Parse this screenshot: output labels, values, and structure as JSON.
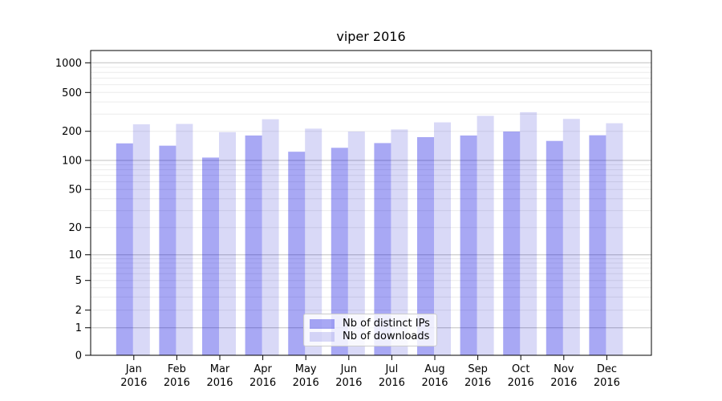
{
  "chart_data": {
    "type": "bar",
    "title": "viper 2016",
    "categories": [
      "Jan 2016",
      "Feb 2016",
      "Mar 2016",
      "Apr 2016",
      "May 2016",
      "Jun 2016",
      "Jul 2016",
      "Aug 2016",
      "Sep 2016",
      "Oct 2016",
      "Nov 2016",
      "Dec 2016"
    ],
    "series": [
      {
        "name": "Nb of distinct IPs",
        "color": "rgba(0,0,223,0.34)",
        "values": [
          150,
          142,
          107,
          181,
          123,
          135,
          151,
          174,
          181,
          199,
          159,
          182
        ]
      },
      {
        "name": "Nb of downloads",
        "color": "rgba(0,0,201,0.15)",
        "values": [
          236,
          238,
          196,
          266,
          213,
          199,
          209,
          247,
          288,
          314,
          268,
          242
        ]
      }
    ],
    "y_ticks": [
      0,
      1,
      2,
      5,
      10,
      20,
      50,
      100,
      200,
      500,
      1000
    ],
    "y_scale": "symlog",
    "ylim": [
      0,
      1400
    ],
    "xlabel": "",
    "ylabel": "",
    "grid": true,
    "legend_position": "lower center",
    "colors": {
      "grid_major": "#c0c0c0",
      "grid_minor": "#ececec",
      "spine": "#000000",
      "legend_border": "#cccccc"
    }
  }
}
